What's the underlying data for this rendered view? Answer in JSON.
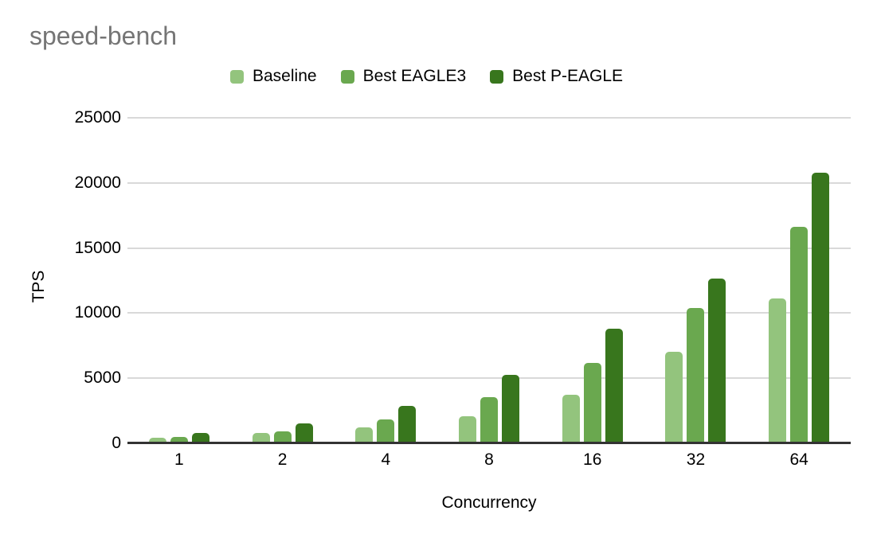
{
  "chart_data": {
    "type": "bar",
    "title": "speed-bench",
    "xlabel": "Concurrency",
    "ylabel": "TPS",
    "categories": [
      "1",
      "2",
      "4",
      "8",
      "16",
      "32",
      "64"
    ],
    "series": [
      {
        "name": "Baseline",
        "color": "#93c47d",
        "values": [
          450,
          780,
          1200,
          2100,
          3750,
          7050,
          11100
        ]
      },
      {
        "name": "Best EAGLE3",
        "color": "#6aa84f",
        "values": [
          470,
          920,
          1850,
          3550,
          6200,
          10400,
          16650
        ]
      },
      {
        "name": "Best P-EAGLE",
        "color": "#38761d",
        "values": [
          800,
          1550,
          2850,
          5250,
          8800,
          12650,
          20800
        ]
      }
    ],
    "ylim": [
      0,
      25000
    ],
    "y_ticks": [
      0,
      5000,
      10000,
      15000,
      20000,
      25000
    ],
    "grid": true,
    "legend_position": "top",
    "colors": {
      "grid": "#d9d9d9",
      "axis": "#333333",
      "title_text": "#757575",
      "tick_text": "#000000",
      "background": "#ffffff"
    }
  }
}
